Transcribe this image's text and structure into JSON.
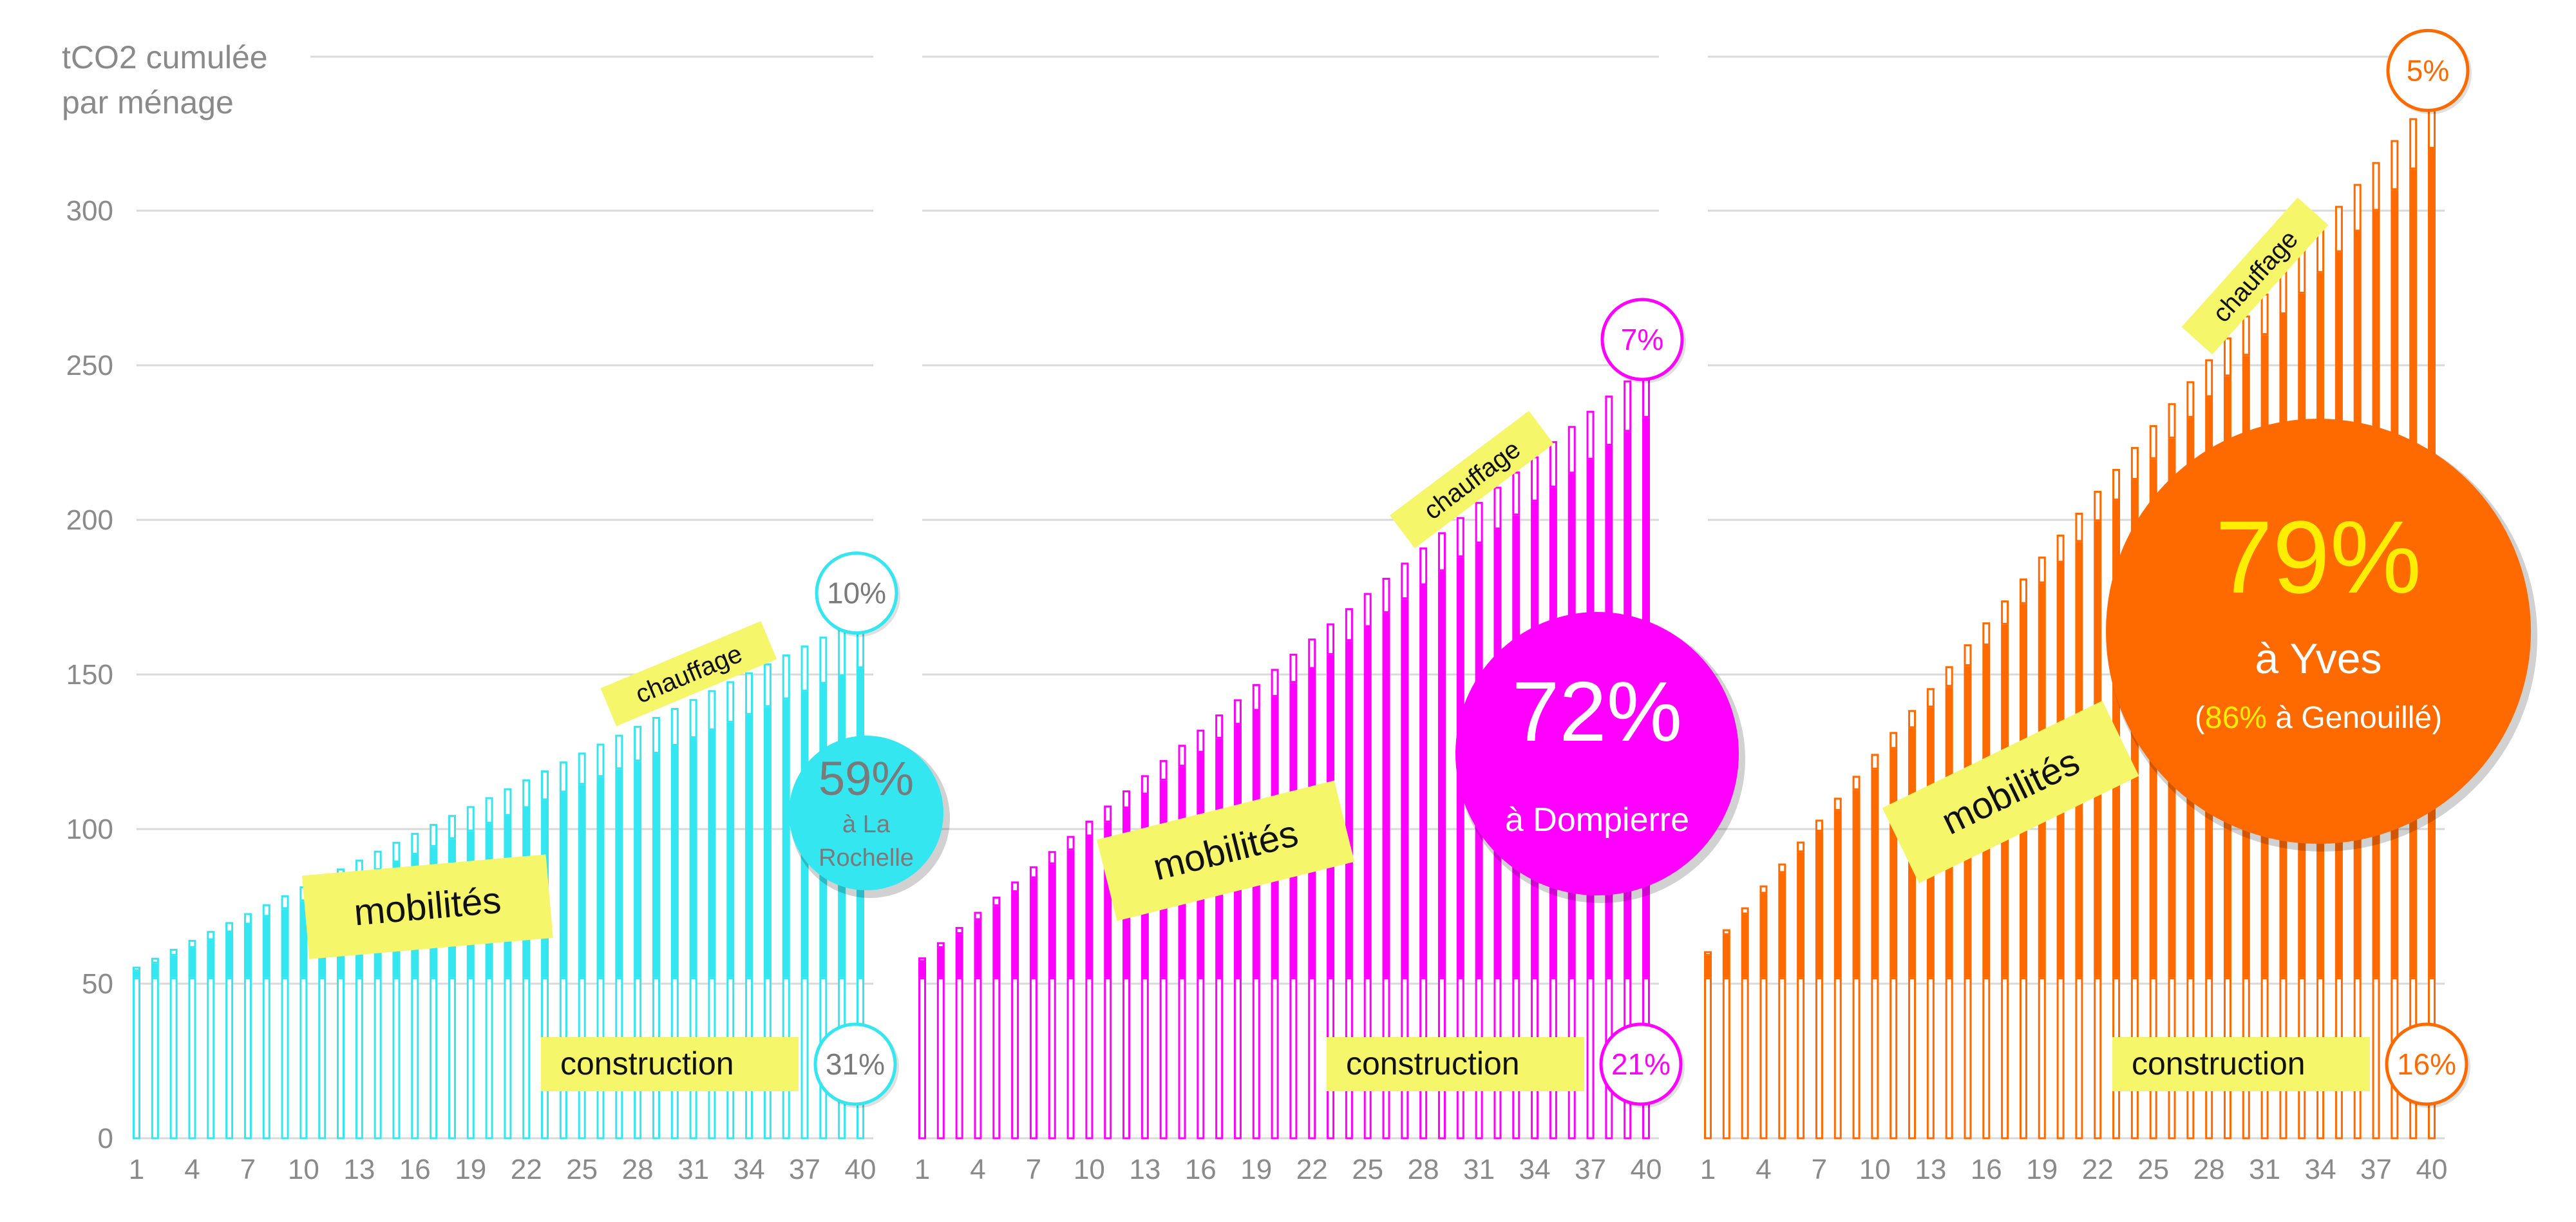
{
  "chart_data": {
    "type": "bar",
    "ylabel_line1": "tCO2 cumulée",
    "ylabel_line2": "par ménage",
    "ylim": [
      0,
      350
    ],
    "yticks": [
      0,
      50,
      100,
      150,
      200,
      250,
      300
    ],
    "xticks": [
      1,
      4,
      7,
      10,
      13,
      16,
      19,
      22,
      25,
      28,
      31,
      34,
      37,
      40
    ],
    "x_range": [
      1,
      40
    ],
    "stacked": true,
    "grid": true,
    "segment_labels": {
      "construction": "construction",
      "mobilites": "mobilités",
      "chauffage": "chauffage"
    },
    "panels": [
      {
        "color": "#33e6f0",
        "construction": 52,
        "mobilites_start": 2,
        "mobilites_end": 100,
        "chauffage_start": 1.5,
        "chauffage_end": 16,
        "pct_construction": "31%",
        "pct_chauffage": "10%",
        "bubble_pct": "59%",
        "bubble_line1": "à La",
        "bubble_line2": "Rochelle",
        "bubble_note_open": "",
        "bubble_note_pct": "",
        "bubble_note_rest": ""
      },
      {
        "color": "#ff00ff",
        "construction": 52,
        "mobilites_start": 5,
        "mobilites_end": 181,
        "chauffage_start": 1.5,
        "chauffage_end": 17,
        "pct_construction": "21%",
        "pct_chauffage": "7%",
        "bubble_pct": "72%",
        "bubble_line1": "à Dompierre",
        "bubble_line2": "",
        "bubble_note_open": "",
        "bubble_note_pct": "",
        "bubble_note_rest": ""
      },
      {
        "color": "#ff6a00",
        "construction": 52,
        "mobilites_start": 7,
        "mobilites_end": 268,
        "chauffage_start": 1.5,
        "chauffage_end": 17,
        "pct_construction": "16%",
        "pct_chauffage": "5%",
        "bubble_pct": "79%",
        "bubble_line1": "à Yves",
        "bubble_line2": "",
        "bubble_note_open": "(",
        "bubble_note_pct": "86%",
        "bubble_note_rest": " à Genouillé)"
      }
    ]
  }
}
